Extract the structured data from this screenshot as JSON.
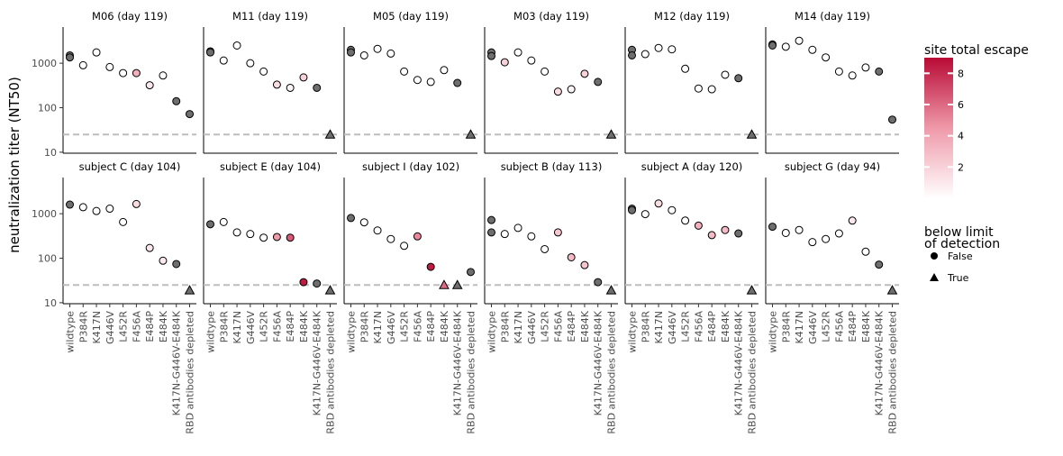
{
  "chart_data": {
    "type": "scatter",
    "ylabel": "neutralization titer (NT50)",
    "yscale": "log",
    "ylim": [
      9.5,
      6500
    ],
    "yticks": [
      10,
      100,
      1000
    ],
    "ytick_labels": [
      "10",
      "100",
      "1000"
    ],
    "limit_of_detection": 25,
    "categories": [
      "wildtype",
      "P384R",
      "K417N",
      "G446V",
      "L452R",
      "F456A",
      "E484P",
      "E484K",
      "K417N-G446V-E484K",
      "RBD antibodies depleted"
    ],
    "color_legend": {
      "title": "site total escape",
      "ticks": [
        2,
        4,
        6,
        8
      ],
      "colors": {
        "low": "#ffffff",
        "mid": "#ef99a9",
        "high": "#b80a35"
      }
    },
    "shape_legend": {
      "title_line1": "below limit",
      "title_line2": "of detection",
      "entries": [
        {
          "label": "False",
          "shape": "circle"
        },
        {
          "label": "True",
          "shape": "triangle"
        }
      ]
    },
    "panels": [
      {
        "title": "M06 (day 119)",
        "points": [
          {
            "x": "wildtype",
            "y": 1500,
            "escape": 0,
            "gray": true
          },
          {
            "x": "wildtype",
            "y": 1350,
            "escape": 0,
            "gray": true
          },
          {
            "x": "P384R",
            "y": 900,
            "escape": 0
          },
          {
            "x": "K417N",
            "y": 1750,
            "escape": 0
          },
          {
            "x": "G446V",
            "y": 820,
            "escape": 0
          },
          {
            "x": "L452R",
            "y": 600,
            "escape": 0
          },
          {
            "x": "F456A",
            "y": 600,
            "escape": 3.5
          },
          {
            "x": "E484P",
            "y": 320,
            "escape": 1
          },
          {
            "x": "E484K",
            "y": 530,
            "escape": 0
          },
          {
            "x": "K417N-G446V-E484K",
            "y": 140,
            "escape": 0,
            "gray": true
          },
          {
            "x": "RBD antibodies depleted",
            "y": 72,
            "escape": 0,
            "gray": true
          }
        ]
      },
      {
        "title": "M11 (day 119)",
        "points": [
          {
            "x": "wildtype",
            "y": 1850,
            "escape": 0,
            "gray": true
          },
          {
            "x": "wildtype",
            "y": 1750,
            "escape": 0,
            "gray": true
          },
          {
            "x": "P384R",
            "y": 1150,
            "escape": 0
          },
          {
            "x": "K417N",
            "y": 2500,
            "escape": 0
          },
          {
            "x": "G446V",
            "y": 1000,
            "escape": 0
          },
          {
            "x": "L452R",
            "y": 650,
            "escape": 0
          },
          {
            "x": "F456A",
            "y": 330,
            "escape": 1.5
          },
          {
            "x": "E484P",
            "y": 280,
            "escape": 0.5
          },
          {
            "x": "E484K",
            "y": 480,
            "escape": 2
          },
          {
            "x": "K417N-G446V-E484K",
            "y": 280,
            "escape": 0,
            "gray": true
          },
          {
            "x": "RBD antibodies depleted",
            "y": 25,
            "escape": 0,
            "gray": true,
            "lod": true
          }
        ]
      },
      {
        "title": "M05 (day 119)",
        "points": [
          {
            "x": "wildtype",
            "y": 2000,
            "escape": 0,
            "gray": true
          },
          {
            "x": "wildtype",
            "y": 1750,
            "escape": 0,
            "gray": true
          },
          {
            "x": "P384R",
            "y": 1500,
            "escape": 0
          },
          {
            "x": "K417N",
            "y": 2100,
            "escape": 0
          },
          {
            "x": "G446V",
            "y": 1650,
            "escape": 0
          },
          {
            "x": "L452R",
            "y": 650,
            "escape": 0
          },
          {
            "x": "F456A",
            "y": 420,
            "escape": 0
          },
          {
            "x": "E484P",
            "y": 380,
            "escape": 0
          },
          {
            "x": "E484K",
            "y": 700,
            "escape": 0
          },
          {
            "x": "K417N-G446V-E484K",
            "y": 360,
            "escape": 0,
            "gray": true
          },
          {
            "x": "RBD antibodies depleted",
            "y": 25,
            "escape": 0,
            "gray": true,
            "lod": true
          }
        ]
      },
      {
        "title": "M03 (day 119)",
        "points": [
          {
            "x": "wildtype",
            "y": 1750,
            "escape": 0,
            "gray": true
          },
          {
            "x": "wildtype",
            "y": 1450,
            "escape": 0,
            "gray": true
          },
          {
            "x": "P384R",
            "y": 1050,
            "escape": 2
          },
          {
            "x": "K417N",
            "y": 1750,
            "escape": 0
          },
          {
            "x": "G446V",
            "y": 1150,
            "escape": 0
          },
          {
            "x": "L452R",
            "y": 650,
            "escape": 0
          },
          {
            "x": "F456A",
            "y": 230,
            "escape": 1.5
          },
          {
            "x": "E484P",
            "y": 260,
            "escape": 0.5
          },
          {
            "x": "E484K",
            "y": 580,
            "escape": 2
          },
          {
            "x": "K417N-G446V-E484K",
            "y": 380,
            "escape": 0,
            "gray": true
          },
          {
            "x": "RBD antibodies depleted",
            "y": 25,
            "escape": 0,
            "gray": true,
            "lod": true
          }
        ]
      },
      {
        "title": "M12 (day 119)",
        "points": [
          {
            "x": "wildtype",
            "y": 2000,
            "escape": 0,
            "gray": true
          },
          {
            "x": "wildtype",
            "y": 1500,
            "escape": 0,
            "gray": true
          },
          {
            "x": "P384R",
            "y": 1600,
            "escape": 0
          },
          {
            "x": "K417N",
            "y": 2200,
            "escape": 0
          },
          {
            "x": "G446V",
            "y": 2050,
            "escape": 0
          },
          {
            "x": "L452R",
            "y": 750,
            "escape": 0
          },
          {
            "x": "F456A",
            "y": 270,
            "escape": 0
          },
          {
            "x": "E484P",
            "y": 260,
            "escape": 0
          },
          {
            "x": "E484K",
            "y": 550,
            "escape": 0
          },
          {
            "x": "K417N-G446V-E484K",
            "y": 460,
            "escape": 0,
            "gray": true
          },
          {
            "x": "RBD antibodies depleted",
            "y": 25,
            "escape": 0,
            "gray": true,
            "lod": true
          }
        ]
      },
      {
        "title": "M14 (day 119)",
        "points": [
          {
            "x": "wildtype",
            "y": 2650,
            "escape": 0,
            "gray": true
          },
          {
            "x": "wildtype",
            "y": 2500,
            "escape": 0,
            "gray": true
          },
          {
            "x": "P384R",
            "y": 2350,
            "escape": 0
          },
          {
            "x": "K417N",
            "y": 3200,
            "escape": 0
          },
          {
            "x": "G446V",
            "y": 2000,
            "escape": 0
          },
          {
            "x": "L452R",
            "y": 1350,
            "escape": 0
          },
          {
            "x": "F456A",
            "y": 650,
            "escape": 0
          },
          {
            "x": "E484P",
            "y": 530,
            "escape": 0
          },
          {
            "x": "E484K",
            "y": 800,
            "escape": 0
          },
          {
            "x": "K417N-G446V-E484K",
            "y": 650,
            "escape": 0,
            "gray": true
          },
          {
            "x": "RBD antibodies depleted",
            "y": 54,
            "escape": 0,
            "gray": true
          }
        ]
      },
      {
        "title": "subject C (day 104)",
        "points": [
          {
            "x": "wildtype",
            "y": 1600,
            "escape": 0,
            "gray": true
          },
          {
            "x": "P384R",
            "y": 1400,
            "escape": 0
          },
          {
            "x": "K417N",
            "y": 1150,
            "escape": 0
          },
          {
            "x": "G446V",
            "y": 1300,
            "escape": 0
          },
          {
            "x": "L452R",
            "y": 650,
            "escape": 0
          },
          {
            "x": "F456A",
            "y": 1650,
            "escape": 1.5
          },
          {
            "x": "E484P",
            "y": 170,
            "escape": 1
          },
          {
            "x": "E484K",
            "y": 88,
            "escape": 1
          },
          {
            "x": "K417N-G446V-E484K",
            "y": 74,
            "escape": 0,
            "gray": true
          },
          {
            "x": "RBD antibodies depleted",
            "y": 19,
            "escape": 0,
            "gray": true,
            "lod": true
          }
        ]
      },
      {
        "title": "subject E (day 104)",
        "points": [
          {
            "x": "wildtype",
            "y": 580,
            "escape": 0,
            "gray": true
          },
          {
            "x": "P384R",
            "y": 650,
            "escape": 0
          },
          {
            "x": "K417N",
            "y": 380,
            "escape": 0
          },
          {
            "x": "G446V",
            "y": 350,
            "escape": 0
          },
          {
            "x": "L452R",
            "y": 290,
            "escape": 0
          },
          {
            "x": "F456A",
            "y": 300,
            "escape": 4.5
          },
          {
            "x": "E484P",
            "y": 290,
            "escape": 6.5
          },
          {
            "x": "E484K",
            "y": 29,
            "escape": 8.5
          },
          {
            "x": "K417N-G446V-E484K",
            "y": 27,
            "escape": 0,
            "gray": true
          },
          {
            "x": "RBD antibodies depleted",
            "y": 19,
            "escape": 0,
            "gray": true,
            "lod": true
          }
        ]
      },
      {
        "title": "subject I (day 102)",
        "points": [
          {
            "x": "wildtype",
            "y": 800,
            "escape": 0,
            "gray": true
          },
          {
            "x": "P384R",
            "y": 640,
            "escape": 0
          },
          {
            "x": "K417N",
            "y": 420,
            "escape": 0
          },
          {
            "x": "G446V",
            "y": 270,
            "escape": 0
          },
          {
            "x": "L452R",
            "y": 190,
            "escape": 0
          },
          {
            "x": "F456A",
            "y": 310,
            "escape": 5
          },
          {
            "x": "E484P",
            "y": 64,
            "escape": 8.5
          },
          {
            "x": "E484K",
            "y": 25,
            "escape": 6,
            "lod": true
          },
          {
            "x": "K417N-G446V-E484K",
            "y": 25,
            "escape": 0,
            "gray": true,
            "lod": true
          },
          {
            "x": "RBD antibodies depleted",
            "y": 49,
            "escape": 0,
            "gray": true
          }
        ]
      },
      {
        "title": "subject B (day 113)",
        "points": [
          {
            "x": "wildtype",
            "y": 720,
            "escape": 0,
            "gray": true
          },
          {
            "x": "wildtype",
            "y": 380,
            "escape": 0,
            "gray": true
          },
          {
            "x": "P384R",
            "y": 350,
            "escape": 0
          },
          {
            "x": "K417N",
            "y": 480,
            "escape": 0
          },
          {
            "x": "G446V",
            "y": 310,
            "escape": 0
          },
          {
            "x": "L452R",
            "y": 160,
            "escape": 0
          },
          {
            "x": "F456A",
            "y": 380,
            "escape": 2.5
          },
          {
            "x": "E484P",
            "y": 105,
            "escape": 3
          },
          {
            "x": "E484K",
            "y": 70,
            "escape": 2.5
          },
          {
            "x": "K417N-G446V-E484K",
            "y": 29,
            "escape": 0,
            "gray": true
          },
          {
            "x": "RBD antibodies depleted",
            "y": 19,
            "escape": 0,
            "gray": true,
            "lod": true
          }
        ]
      },
      {
        "title": "subject A (day 120)",
        "points": [
          {
            "x": "wildtype",
            "y": 1300,
            "escape": 0,
            "gray": true
          },
          {
            "x": "wildtype",
            "y": 1200,
            "escape": 0,
            "gray": true
          },
          {
            "x": "P384R",
            "y": 980,
            "escape": 0
          },
          {
            "x": "K417N",
            "y": 1700,
            "escape": 1.5
          },
          {
            "x": "G446V",
            "y": 1200,
            "escape": 0
          },
          {
            "x": "L452R",
            "y": 700,
            "escape": 0
          },
          {
            "x": "F456A",
            "y": 540,
            "escape": 3.5
          },
          {
            "x": "E484P",
            "y": 330,
            "escape": 3
          },
          {
            "x": "E484K",
            "y": 430,
            "escape": 3
          },
          {
            "x": "K417N-G446V-E484K",
            "y": 360,
            "escape": 0,
            "gray": true
          },
          {
            "x": "RBD antibodies depleted",
            "y": 19,
            "escape": 0,
            "gray": true,
            "lod": true
          }
        ]
      },
      {
        "title": "subject G (day 94)",
        "points": [
          {
            "x": "wildtype",
            "y": 510,
            "escape": 0,
            "gray": true
          },
          {
            "x": "P384R",
            "y": 370,
            "escape": 0
          },
          {
            "x": "K417N",
            "y": 430,
            "escape": 0
          },
          {
            "x": "G446V",
            "y": 230,
            "escape": 0
          },
          {
            "x": "L452R",
            "y": 270,
            "escape": 0
          },
          {
            "x": "F456A",
            "y": 360,
            "escape": 0
          },
          {
            "x": "E484P",
            "y": 700,
            "escape": 1
          },
          {
            "x": "E484K",
            "y": 140,
            "escape": 0
          },
          {
            "x": "K417N-G446V-E484K",
            "y": 72,
            "escape": 0,
            "gray": true
          },
          {
            "x": "RBD antibodies depleted",
            "y": 19,
            "escape": 0,
            "gray": true,
            "lod": true
          }
        ]
      }
    ]
  }
}
